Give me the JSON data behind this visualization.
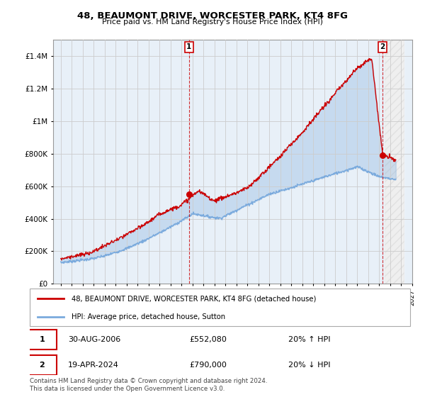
{
  "title": "48, BEAUMONT DRIVE, WORCESTER PARK, KT4 8FG",
  "subtitle": "Price paid vs. HM Land Registry's House Price Index (HPI)",
  "legend_label_red": "48, BEAUMONT DRIVE, WORCESTER PARK, KT4 8FG (detached house)",
  "legend_label_blue": "HPI: Average price, detached house, Sutton",
  "transaction1_date": "30-AUG-2006",
  "transaction1_price": "£552,080",
  "transaction1_hpi": "20% ↑ HPI",
  "transaction2_date": "19-APR-2024",
  "transaction2_price": "£790,000",
  "transaction2_hpi": "20% ↓ HPI",
  "footer": "Contains HM Land Registry data © Crown copyright and database right 2024.\nThis data is licensed under the Open Government Licence v3.0.",
  "red_color": "#cc0000",
  "blue_color": "#7aaadd",
  "blue_fill": "#ddeeff",
  "grid_color": "#cccccc",
  "bg_color": "#e8f0f8",
  "hatch_color": "#bbbbbb",
  "ylim_max": 1500000,
  "ylim_min": 0,
  "transaction1_year": 2006.67,
  "transaction1_value": 552080,
  "transaction2_year": 2024.3,
  "transaction2_value": 790000
}
